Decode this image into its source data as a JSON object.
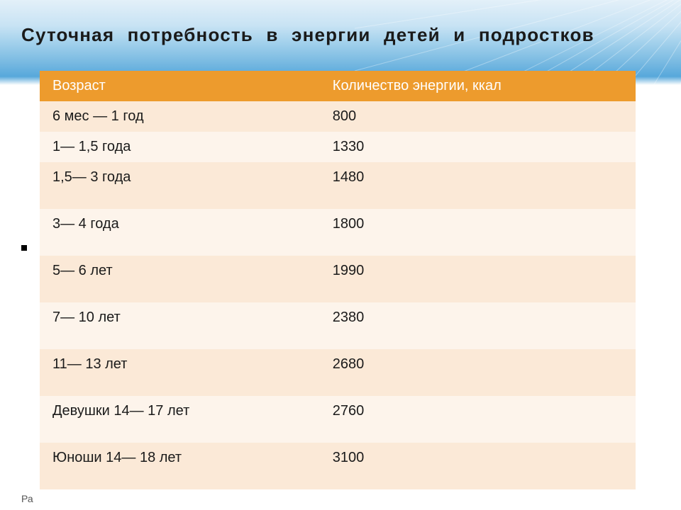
{
  "title": "Суточная потребность в энергии детей и подростков",
  "table": {
    "columns": [
      "Возраст",
      "Количество энергии, ккал"
    ],
    "col_widths": [
      "47%",
      "53%"
    ],
    "header_bg": "#ed9b2d",
    "header_fg": "#ffffff",
    "row_bg_a": "#fbe9d7",
    "row_bg_b": "#fdf4eb",
    "body_fontsize": 20,
    "header_fontsize": 20,
    "rows": [
      {
        "age": "6 мес — 1 год",
        "kcal": "800",
        "shade": "a",
        "tall": false
      },
      {
        "age": "1— 1,5 года",
        "kcal": "1330",
        "shade": "b",
        "tall": false
      },
      {
        "age": "1,5— 3 года",
        "kcal": "1480",
        "shade": "a",
        "tall": true
      },
      {
        "age": "3— 4 года",
        "kcal": "1800",
        "shade": "b",
        "tall": true
      },
      {
        "age": "5— 6 лет",
        "kcal": "1990",
        "shade": "a",
        "tall": true
      },
      {
        "age": "7— 10 лет",
        "kcal": "2380",
        "shade": "b",
        "tall": true
      },
      {
        "age": "11— 13 лет",
        "kcal": "2680",
        "shade": "a",
        "tall": true
      },
      {
        "age": "Девушки 14— 17 лет",
        "kcal": "2760",
        "shade": "b",
        "tall": true
      },
      {
        "age": "Юноши 14— 18 лет",
        "kcal": "3100",
        "shade": "a",
        "tall": true
      }
    ]
  },
  "banner": {
    "gradient_top": "#e3f0f9",
    "gradient_mid": "#7fbde3",
    "gradient_bottom": "#ffffff",
    "ray_stroke": "#ffffff"
  },
  "footer": "Ра"
}
